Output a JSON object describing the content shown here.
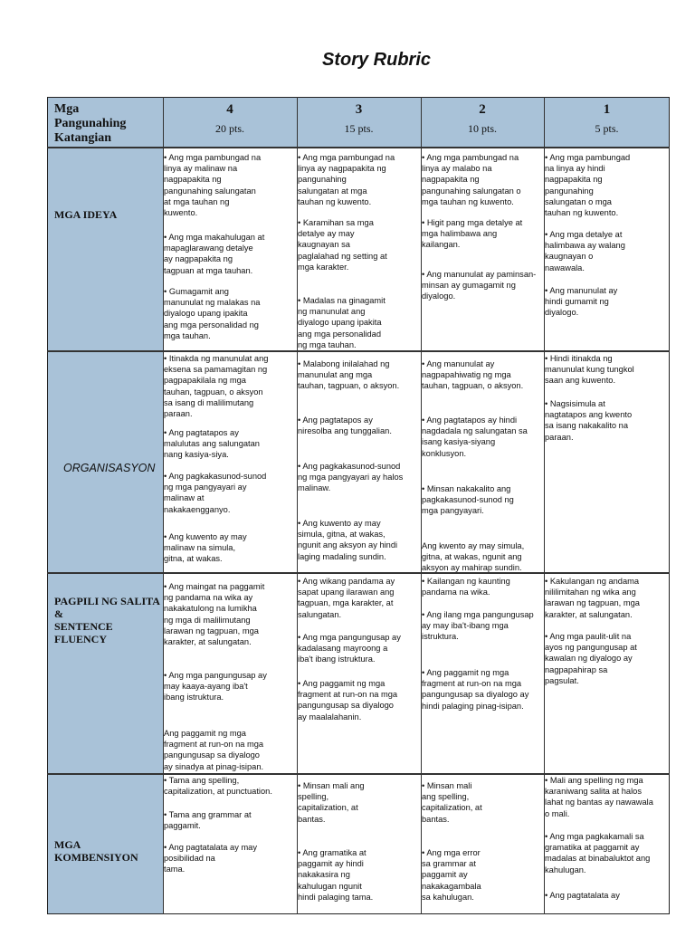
{
  "title": "Story Rubric",
  "header": {
    "criteria_label": "Mga\nPangunahing\nKatangian",
    "levels": [
      {
        "score": "4",
        "points": "20 pts."
      },
      {
        "score": "3",
        "points": "15 pts."
      },
      {
        "score": "2",
        "points": "10 pts."
      },
      {
        "score": "1",
        "points": "5 pts."
      }
    ]
  },
  "rows": [
    {
      "label": "MGA IDEYA",
      "cells": [
        [
          "• Ang mga pambungad na\n  linya ay malinaw na\n  nagpapakita ng\n  pangunahing salungatan\n  at mga tauhan ng\n  kuwento.",
          "•  Ang mga makahulugan at\n   mapaglarawang detalye\n   ay nagpapakita ng\n   tagpuan at mga tauhan.",
          "   • Gumagamit ang\n   manunulat ng malakas na\n   diyalogo upang ipakita\n   ang mga personalidad ng\n   mga tauhan."
        ],
        [
          "• Ang mga pambungad na\n  linya ay nagpapakita ng\n  pangunahing\n  salungatan at mga\n  tauhan ng kuwento.",
          "• Karamihan sa mga\n  detalye ay may\n  kaugnayan sa\n  paglalahad ng setting at\n  mga karakter.",
          "•  Madalas na ginagamit\n   ng manunulat ang\n   diyalogo upang ipakita\n   ang mga personalidad\n   ng mga tauhan."
        ],
        [
          "• Ang mga pambungad na\n  linya ay malabo na\n  nagpapakita ng\n  pangunahing salungatan o\n  mga tauhan ng kuwento.",
          "• Higit pang mga detalye at\n  mga halimbawa ang\n  kailangan.",
          "• Ang manunulat ay paminsan-\n  minsan ay gumagamit ng\n  diyalogo."
        ],
        [
          "• Ang mga pambungad\n  na linya ay hindi\n  nagpapakita ng\n  pangunahing\n  salungatan o mga\n  tauhan ng kuwento.",
          "• Ang mga detalye at\n  halimbawa ay walang\n  kaugnayan o\n  nawawala.",
          "• Ang manunulat ay\n  hindi gumamit ng\n  diyalogo."
        ]
      ]
    },
    {
      "label": "ORGANISASYON",
      "cells": [
        [
          "• Itinakda ng manunulat ang\n  eksena sa pamamagitan ng\n  pagpapakilala ng mga\n  tauhan, tagpuan, o aksyon\n  sa isang di malilimutang\n  paraan.",
          "• Ang pagtatapos ay\n  malulutas ang salungatan\n  nang kasiya-siya.",
          "•  Ang pagkakasunod-sunod\n   ng mga pangyayari ay\n   malinaw at\n   nakakaengganyo.",
          "• Ang kuwento ay may\n  malinaw na simula,\n  gitna, at wakas."
        ],
        [
          "  • Malabong inilalahad ng\n  manunulat ang mga\n  tauhan, tagpuan, o aksyon.",
          "  • Ang pagtatapos ay\n  niresolba ang tunggalian.",
          "  • Ang pagkakasunod-sunod\n  ng mga pangyayari ay halos\n  malinaw.",
          "  • Ang kuwento ay may\n  simula, gitna, at wakas,\n  ngunit ang aksyon ay hindi\n  laging madaling sundin."
        ],
        [
          "  • Ang manunulat ay\n  nagpapahiwatig ng mga\n  tauhan, tagpuan, o aksyon.",
          "  • Ang pagtatapos ay hindi\n  nagdadala ng salungatan sa\n  isang kasiya-siyang\n  konklusyon.",
          "  • Minsan nakakalito ang\n  pagkakasunod-sunod ng\n  mga pangyayari.",
          "  Ang kwento ay may simula,\n  gitna, at wakas, ngunit ang\n  aksyon ay mahirap sundin."
        ],
        [
          "   • Hindi itinakda ng\n   manunulat kung tungkol\n   saan ang kuwento.",
          "   • Nagsisimula at\n   nagtatapos ang kwento\n   sa isang nakakalito na\n   paraan."
        ]
      ]
    },
    {
      "label": "PAGPILI NG SALITA\n&\nSENTENCE\nFLUENCY",
      "cells": [
        [
          "  • Ang maingat na paggamit\n  ng pandama na wika ay\n  nakakatulong na lumikha\n  ng mga di malilimutang\n  larawan ng tagpuan, mga\n  karakter, at salungatan.",
          "  • Ang mga pangungusap ay\n  may kaaya-ayang iba't\n  ibang istruktura.",
          "  Ang paggamit ng mga\n  fragment at run-on na mga\n  pangungusap sa diyalogo\n  ay sinadya at pinag-isipan."
        ],
        [
          "• Ang wikang pandama ay\n  sapat upang ilarawan ang\n  tagpuan, mga karakter, at\n  salungatan.",
          "• Ang mga pangungusap ay\n  kadalasang mayroong a\n  iba't ibang istruktura.",
          "• Ang paggamit ng mga\n  fragment at run-on na mga\n  pangungusap sa diyalogo\n  ay maalalahanin."
        ],
        [
          "• Kailangan ng kaunting\n  pandama na wika.",
          "• Ang ilang mga pangungusap\n  ay may iba't-ibang mga\n  istruktura.",
          "• Ang paggamit ng mga\n  fragment at run-on na mga\n  pangungusap sa diyalogo ay\n  hindi palaging pinag-isipan."
        ],
        [
          "  •  Kakulangan ng  andama\n  nililimitahan ng wika ang\n  larawan ng tagpuan, mga\n  karakter, at salungatan.",
          "• Ang mga paulit-ulit na\n  ayos ng pangungusap at\n  kawalan ng diyalogo ay\n  nagpapahirap sa\n  pagsulat."
        ]
      ]
    },
    {
      "label": "MGA\nKOMBENSIYON",
      "cells": [
        [
          "  • Tama ang spelling,\n  capitalization, at punctuation.",
          "  • Tama ang grammar at\n  paggamit.",
          "  • Ang pagtatalata ay may\n  posibilidad na\n  tama."
        ],
        [
          "  • Minsan mali ang\n  spelling,\n  capitalization, at\n  bantas.",
          "  • Ang gramatika at\n  paggamit ay hindi\n  nakakasira ng\n  kahulugan ngunit\n  hindi palaging tama."
        ],
        [
          "  • Minsan mali\n  ang spelling,\n  capitalization, at\n  bantas.",
          "  • Ang mga error\n  sa grammar at\n  paggamit ay\n  nakakagambala\n  sa kahulugan."
        ],
        [
          "  • Mali ang spelling ng mga\n  karaniwang salita at halos\n  lahat ng bantas ay nawawala\n  o mali.",
          "  • Ang mga pagkakamali sa\n  gramatika at paggamit ay\n  madalas at binabaluktot ang\n  kahulugan.",
          "  • Ang pagtatalata ay"
        ]
      ]
    }
  ],
  "colors": {
    "header_fill": "#a9c2d8",
    "border": "#333333"
  }
}
